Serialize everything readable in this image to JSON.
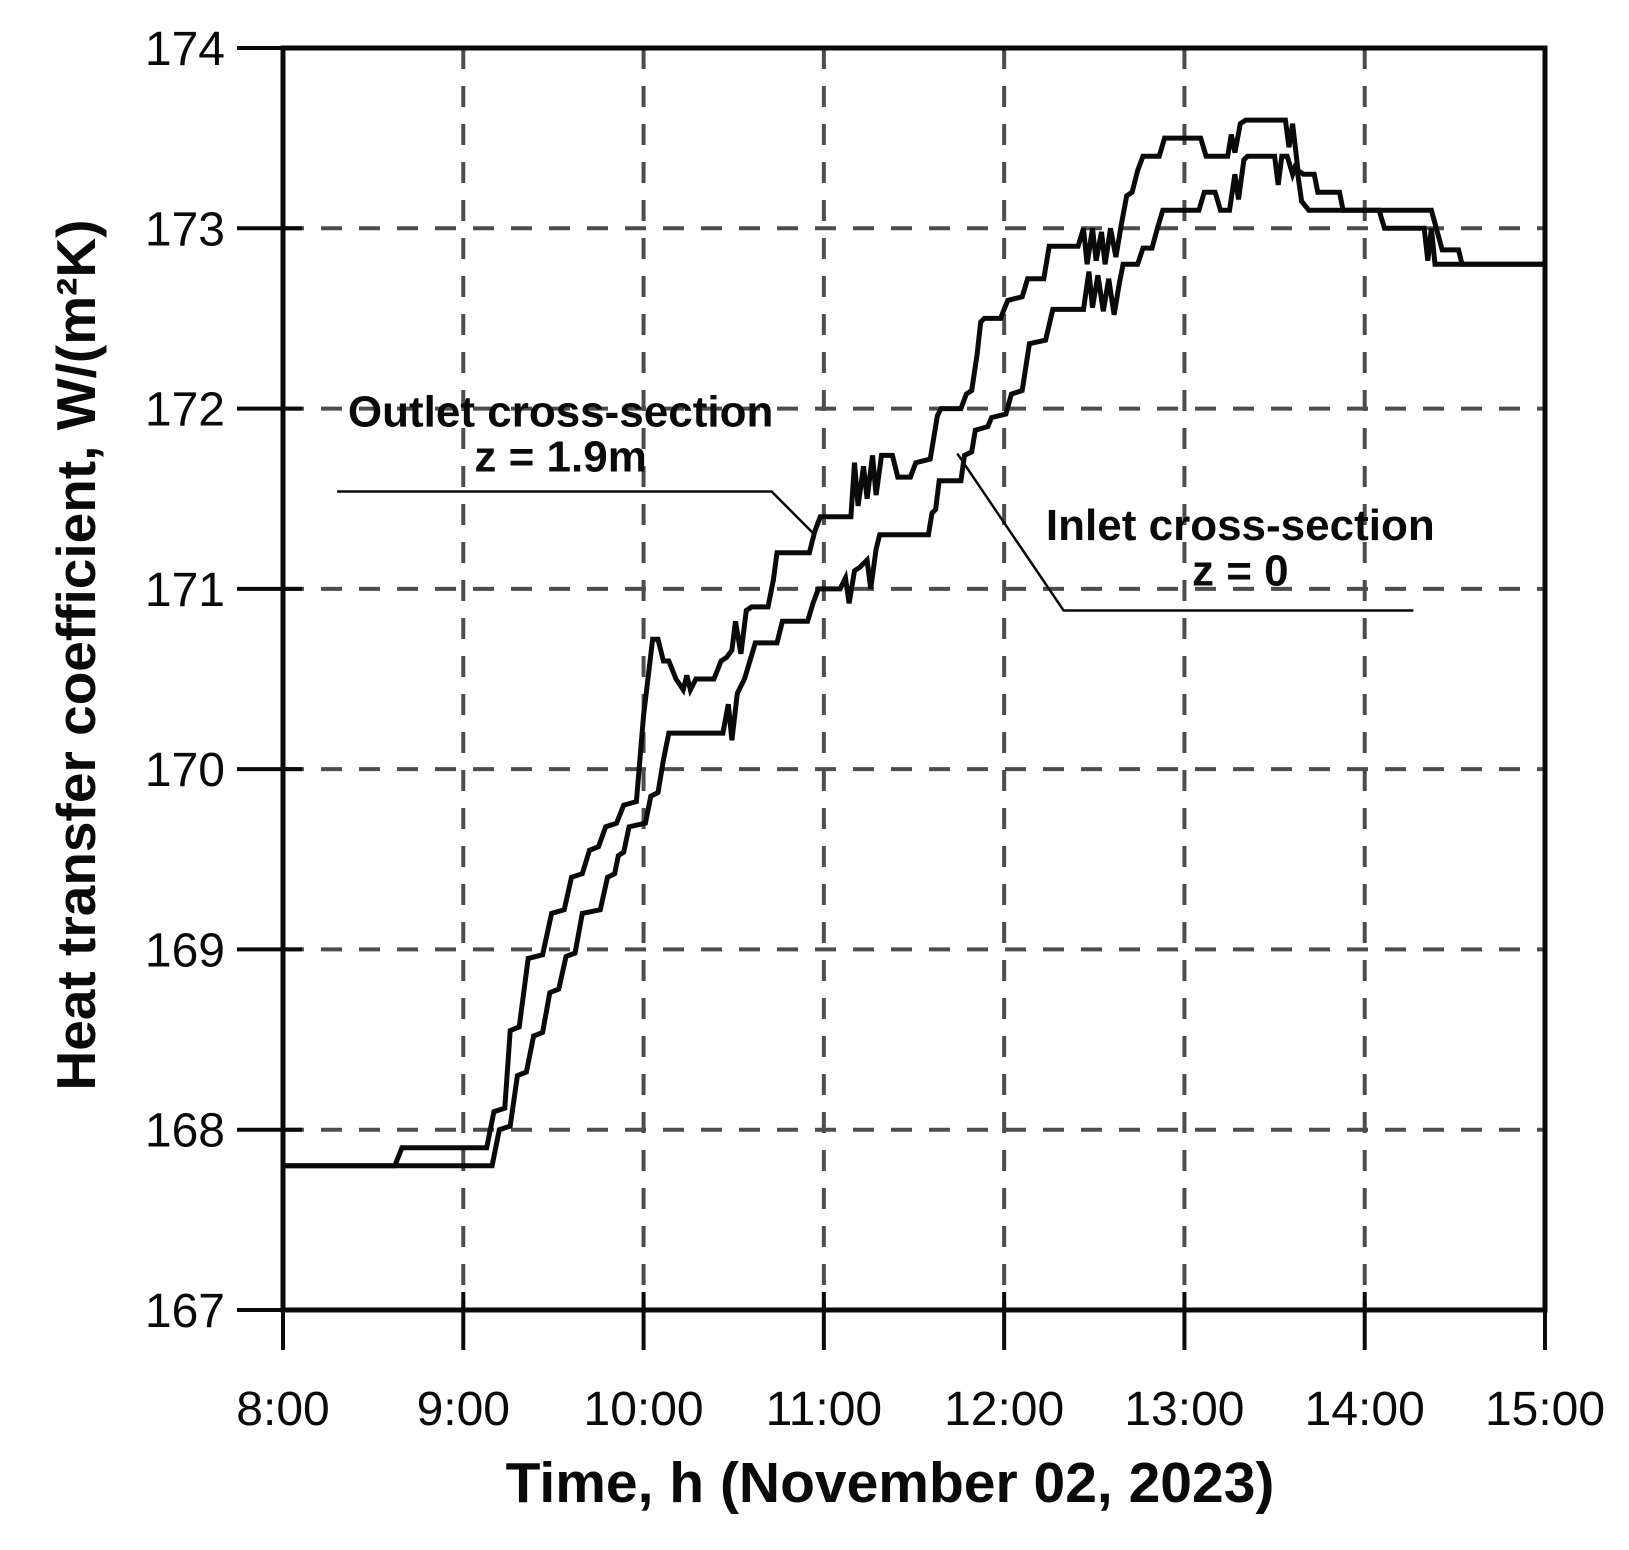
{
  "page": {
    "background": "#ffffff",
    "ink_color": "#0a0a0a",
    "grid_color": "#4d4d4d"
  },
  "chart_data": {
    "type": "line",
    "title": "",
    "xlabel": "Time, h (November 02, 2023)",
    "ylabel": "Heat transfer coefficient, W/(m²K)",
    "xlim": [
      8,
      15
    ],
    "ylim": [
      167,
      174
    ],
    "grid": {
      "style": "dashed",
      "x_gridlines": [
        9,
        10,
        11,
        12,
        13,
        14
      ],
      "y_gridlines": [
        168,
        169,
        170,
        171,
        172,
        173
      ]
    },
    "x_ticks": [
      {
        "value": 8,
        "label": "8:00"
      },
      {
        "value": 9,
        "label": "9:00"
      },
      {
        "value": 10,
        "label": "10:00"
      },
      {
        "value": 11,
        "label": "11:00"
      },
      {
        "value": 12,
        "label": "12:00"
      },
      {
        "value": 13,
        "label": "13:00"
      },
      {
        "value": 14,
        "label": "14:00"
      },
      {
        "value": 15,
        "label": "15:00"
      }
    ],
    "y_ticks": [
      {
        "value": 167,
        "label": "167"
      },
      {
        "value": 168,
        "label": "168"
      },
      {
        "value": 169,
        "label": "169"
      },
      {
        "value": 170,
        "label": "170"
      },
      {
        "value": 171,
        "label": "171"
      },
      {
        "value": 172,
        "label": "172"
      },
      {
        "value": 173,
        "label": "173"
      },
      {
        "value": 174,
        "label": "174"
      }
    ],
    "legend_position": "annotations-on-plot",
    "series": [
      {
        "name": "Outlet cross-section z = 1.9m",
        "color": "#0a0a0a",
        "points": [
          [
            8.0,
            167.8
          ],
          [
            8.62,
            167.8
          ],
          [
            8.66,
            167.9
          ],
          [
            9.13,
            167.9
          ],
          [
            9.17,
            168.1
          ],
          [
            9.23,
            168.12
          ],
          [
            9.26,
            168.55
          ],
          [
            9.31,
            168.57
          ],
          [
            9.36,
            168.95
          ],
          [
            9.44,
            168.97
          ],
          [
            9.49,
            169.2
          ],
          [
            9.56,
            169.22
          ],
          [
            9.6,
            169.4
          ],
          [
            9.66,
            169.42
          ],
          [
            9.7,
            169.55
          ],
          [
            9.75,
            169.57
          ],
          [
            9.79,
            169.68
          ],
          [
            9.85,
            169.7
          ],
          [
            9.89,
            169.8
          ],
          [
            9.96,
            169.82
          ],
          [
            10.0,
            170.3
          ],
          [
            10.03,
            170.55
          ],
          [
            10.05,
            170.72
          ],
          [
            10.08,
            170.72
          ],
          [
            10.11,
            170.6
          ],
          [
            10.14,
            170.6
          ],
          [
            10.18,
            170.5
          ],
          [
            10.22,
            170.44
          ],
          [
            10.24,
            170.52
          ],
          [
            10.26,
            170.44
          ],
          [
            10.29,
            170.5
          ],
          [
            10.39,
            170.5
          ],
          [
            10.43,
            170.6
          ],
          [
            10.46,
            170.62
          ],
          [
            10.49,
            170.66
          ],
          [
            10.51,
            170.82
          ],
          [
            10.54,
            170.64
          ],
          [
            10.57,
            170.88
          ],
          [
            10.6,
            170.9
          ],
          [
            10.69,
            170.9
          ],
          [
            10.72,
            171.05
          ],
          [
            10.74,
            171.2
          ],
          [
            10.92,
            171.2
          ],
          [
            10.95,
            171.32
          ],
          [
            10.98,
            171.4
          ],
          [
            11.15,
            171.4
          ],
          [
            11.17,
            171.7
          ],
          [
            11.19,
            171.46
          ],
          [
            11.22,
            171.68
          ],
          [
            11.24,
            171.5
          ],
          [
            11.27,
            171.74
          ],
          [
            11.29,
            171.52
          ],
          [
            11.32,
            171.74
          ],
          [
            11.38,
            171.74
          ],
          [
            11.41,
            171.62
          ],
          [
            11.48,
            171.62
          ],
          [
            11.51,
            171.7
          ],
          [
            11.59,
            171.72
          ],
          [
            11.63,
            171.96
          ],
          [
            11.65,
            172.0
          ],
          [
            11.76,
            172.0
          ],
          [
            11.79,
            172.08
          ],
          [
            11.82,
            172.1
          ],
          [
            11.85,
            172.3
          ],
          [
            11.87,
            172.48
          ],
          [
            11.89,
            172.5
          ],
          [
            11.98,
            172.5
          ],
          [
            12.02,
            172.6
          ],
          [
            12.1,
            172.62
          ],
          [
            12.13,
            172.72
          ],
          [
            12.22,
            172.72
          ],
          [
            12.25,
            172.9
          ],
          [
            12.41,
            172.9
          ],
          [
            12.44,
            173.0
          ],
          [
            12.46,
            172.8
          ],
          [
            12.49,
            173.0
          ],
          [
            12.51,
            172.82
          ],
          [
            12.54,
            172.98
          ],
          [
            12.56,
            172.8
          ],
          [
            12.59,
            173.0
          ],
          [
            12.62,
            172.84
          ],
          [
            12.65,
            173.02
          ],
          [
            12.68,
            173.18
          ],
          [
            12.71,
            173.2
          ],
          [
            12.74,
            173.32
          ],
          [
            12.77,
            173.4
          ],
          [
            12.86,
            173.4
          ],
          [
            12.89,
            173.5
          ],
          [
            13.09,
            173.5
          ],
          [
            13.12,
            173.4
          ],
          [
            13.24,
            173.4
          ],
          [
            13.26,
            173.52
          ],
          [
            13.28,
            173.42
          ],
          [
            13.31,
            173.58
          ],
          [
            13.34,
            173.6
          ],
          [
            13.56,
            173.6
          ],
          [
            13.58,
            173.45
          ],
          [
            13.6,
            173.58
          ],
          [
            13.63,
            173.32
          ],
          [
            13.66,
            173.3
          ],
          [
            13.72,
            173.3
          ],
          [
            13.74,
            173.2
          ],
          [
            13.86,
            173.2
          ],
          [
            13.88,
            173.1
          ],
          [
            14.08,
            173.1
          ],
          [
            14.11,
            173.0
          ],
          [
            14.33,
            173.0
          ],
          [
            14.35,
            172.82
          ],
          [
            14.37,
            173.0
          ],
          [
            14.39,
            172.8
          ],
          [
            14.42,
            172.8
          ],
          [
            15.0,
            172.8
          ]
        ]
      },
      {
        "name": "Inlet cross-section z = 0",
        "color": "#0a0a0a",
        "points": [
          [
            8.0,
            167.8
          ],
          [
            9.16,
            167.8
          ],
          [
            9.2,
            168.0
          ],
          [
            9.26,
            168.02
          ],
          [
            9.3,
            168.3
          ],
          [
            9.35,
            168.32
          ],
          [
            9.39,
            168.52
          ],
          [
            9.44,
            168.54
          ],
          [
            9.48,
            168.76
          ],
          [
            9.53,
            168.78
          ],
          [
            9.57,
            168.96
          ],
          [
            9.62,
            168.98
          ],
          [
            9.66,
            169.2
          ],
          [
            9.76,
            169.22
          ],
          [
            9.8,
            169.4
          ],
          [
            9.84,
            169.42
          ],
          [
            9.86,
            169.52
          ],
          [
            9.89,
            169.54
          ],
          [
            9.92,
            169.68
          ],
          [
            10.01,
            169.7
          ],
          [
            10.04,
            169.85
          ],
          [
            10.08,
            169.87
          ],
          [
            10.11,
            170.05
          ],
          [
            10.14,
            170.2
          ],
          [
            10.44,
            170.2
          ],
          [
            10.47,
            170.36
          ],
          [
            10.49,
            170.16
          ],
          [
            10.52,
            170.42
          ],
          [
            10.56,
            170.5
          ],
          [
            10.59,
            170.6
          ],
          [
            10.62,
            170.7
          ],
          [
            10.74,
            170.7
          ],
          [
            10.77,
            170.82
          ],
          [
            10.91,
            170.82
          ],
          [
            10.94,
            170.92
          ],
          [
            10.97,
            171.0
          ],
          [
            11.09,
            171.0
          ],
          [
            11.12,
            171.06
          ],
          [
            11.14,
            170.92
          ],
          [
            11.17,
            171.1
          ],
          [
            11.2,
            171.12
          ],
          [
            11.24,
            171.16
          ],
          [
            11.26,
            171.0
          ],
          [
            11.29,
            171.22
          ],
          [
            11.31,
            171.3
          ],
          [
            11.58,
            171.3
          ],
          [
            11.6,
            171.42
          ],
          [
            11.62,
            171.44
          ],
          [
            11.64,
            171.6
          ],
          [
            11.76,
            171.6
          ],
          [
            11.78,
            171.74
          ],
          [
            11.82,
            171.76
          ],
          [
            11.84,
            171.88
          ],
          [
            11.91,
            171.9
          ],
          [
            11.93,
            171.95
          ],
          [
            12.01,
            171.97
          ],
          [
            12.04,
            172.08
          ],
          [
            12.1,
            172.1
          ],
          [
            12.14,
            172.36
          ],
          [
            12.23,
            172.38
          ],
          [
            12.27,
            172.55
          ],
          [
            12.44,
            172.55
          ],
          [
            12.47,
            172.76
          ],
          [
            12.49,
            172.56
          ],
          [
            12.52,
            172.74
          ],
          [
            12.55,
            172.54
          ],
          [
            12.58,
            172.72
          ],
          [
            12.61,
            172.52
          ],
          [
            12.64,
            172.7
          ],
          [
            12.66,
            172.8
          ],
          [
            12.74,
            172.8
          ],
          [
            12.77,
            172.89
          ],
          [
            12.82,
            172.89
          ],
          [
            12.85,
            173.0
          ],
          [
            12.88,
            173.1
          ],
          [
            13.08,
            173.1
          ],
          [
            13.11,
            173.2
          ],
          [
            13.17,
            173.2
          ],
          [
            13.2,
            173.1
          ],
          [
            13.25,
            173.1
          ],
          [
            13.28,
            173.3
          ],
          [
            13.3,
            173.16
          ],
          [
            13.33,
            173.38
          ],
          [
            13.35,
            173.4
          ],
          [
            13.5,
            173.4
          ],
          [
            13.52,
            173.24
          ],
          [
            13.54,
            173.4
          ],
          [
            13.57,
            173.4
          ],
          [
            13.6,
            173.3
          ],
          [
            13.62,
            173.36
          ],
          [
            13.65,
            173.15
          ],
          [
            13.69,
            173.1
          ],
          [
            14.37,
            173.1
          ],
          [
            14.43,
            172.88
          ],
          [
            14.52,
            172.88
          ],
          [
            14.54,
            172.8
          ],
          [
            15.0,
            172.8
          ]
        ]
      }
    ],
    "annotations": [
      {
        "id": "outlet-label",
        "lines": [
          {
            "text": "Outlet cross-section",
            "t": 9.54,
            "v": 171.9
          },
          {
            "text": "z = 1.9m",
            "t": 9.54,
            "v": 171.65
          }
        ],
        "leader": [
          [
            8.3,
            171.54
          ],
          [
            10.71,
            171.54
          ],
          [
            10.94,
            171.31
          ]
        ]
      },
      {
        "id": "inlet-label",
        "lines": [
          {
            "text": "Inlet cross-section",
            "t": 13.31,
            "v": 171.27
          },
          {
            "text": "z = 0",
            "t": 13.31,
            "v": 171.02
          }
        ],
        "leader": [
          [
            11.74,
            171.75
          ],
          [
            12.33,
            170.88
          ],
          [
            14.27,
            170.88
          ]
        ]
      }
    ]
  }
}
